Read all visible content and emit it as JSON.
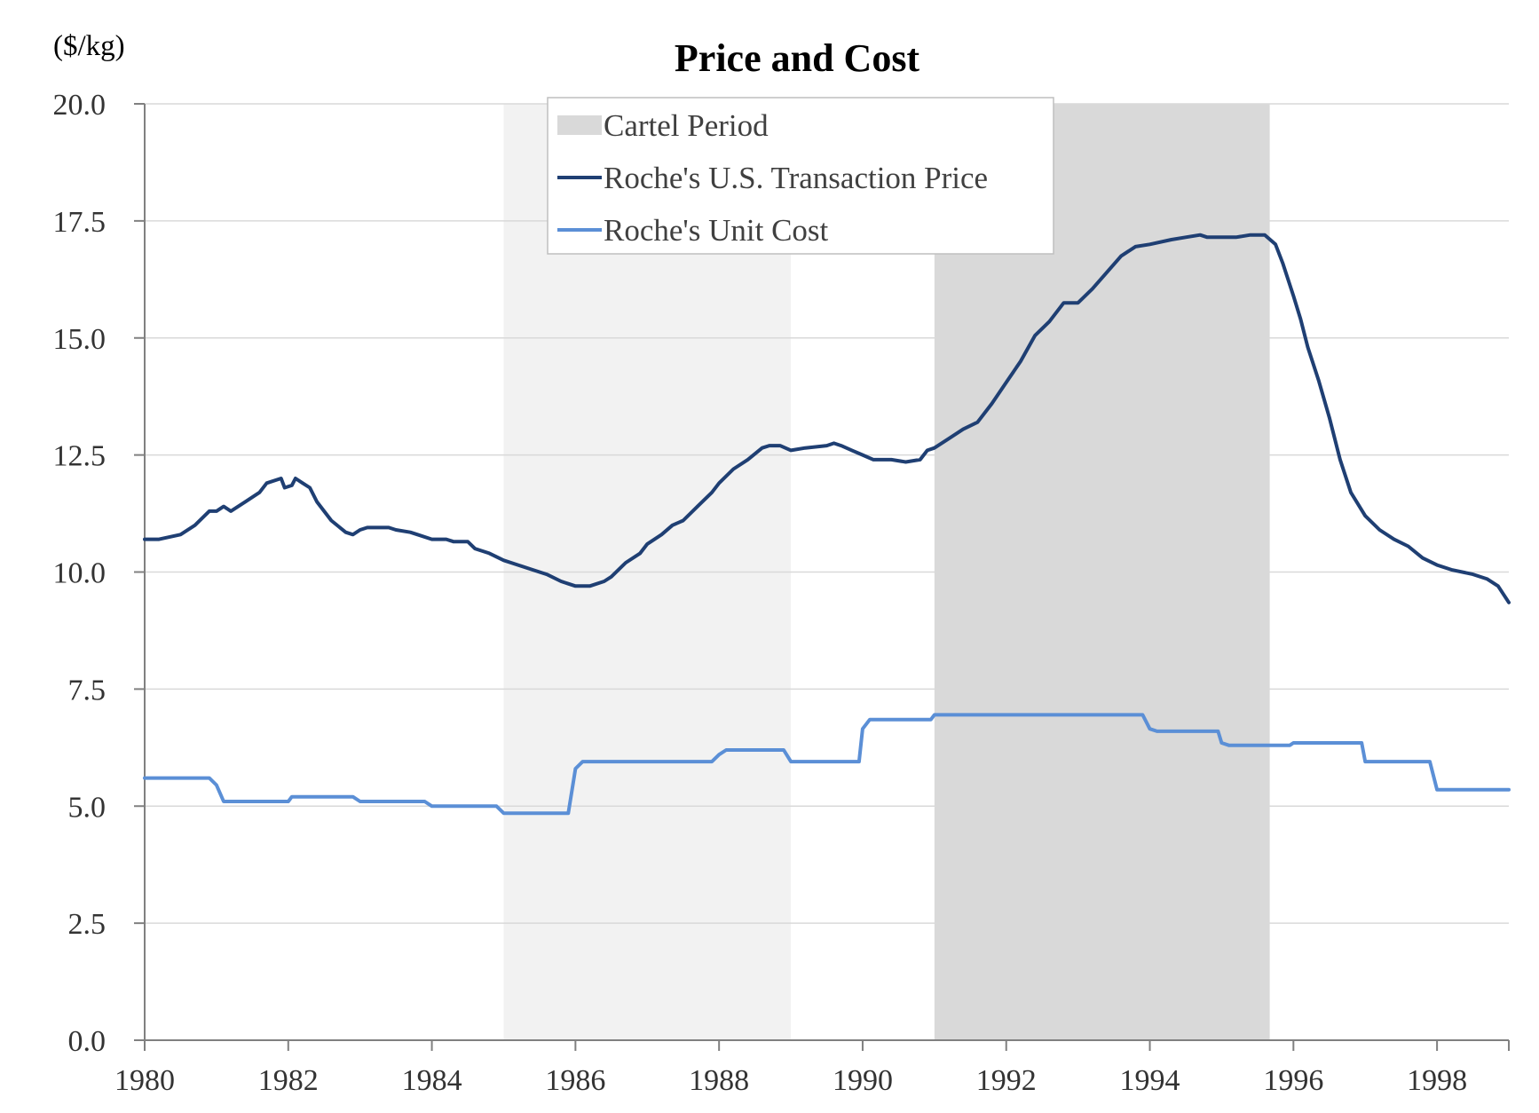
{
  "chart_data": {
    "type": "line",
    "title": "Price and Cost",
    "unit_label": "($/kg)",
    "xlim": [
      1980,
      1999
    ],
    "ylim": [
      0,
      20
    ],
    "x_ticks": [
      "1980",
      "1982",
      "1984",
      "1986",
      "1988",
      "1990",
      "1992",
      "1994",
      "1996",
      "1998"
    ],
    "y_ticks": [
      "0.0",
      "2.5",
      "5.0",
      "7.5",
      "10.0",
      "12.5",
      "15.0",
      "17.5",
      "20.0"
    ],
    "grid": "horizontal",
    "legend_placement": "top-center",
    "shaded_periods": [
      {
        "name": "",
        "start": 1985.0,
        "end": 1989.0,
        "color": "#f2f2f2"
      },
      {
        "name": "Cartel Period",
        "start": 1991.0,
        "end": 1995.67,
        "color": "#d9d9d9"
      }
    ],
    "legend": [
      {
        "label": "Cartel Period",
        "kind": "box",
        "color": "#d9d9d9"
      },
      {
        "label": "Roche's U.S. Transaction Price",
        "kind": "line",
        "color": "#1f3f73"
      },
      {
        "label": "Roche's Unit Cost",
        "kind": "line",
        "color": "#5b8fd6"
      }
    ],
    "series": [
      {
        "name": "Roche's U.S. Transaction Price",
        "color": "#1f3f73",
        "points": [
          [
            1980.0,
            10.7
          ],
          [
            1980.2,
            10.7
          ],
          [
            1980.5,
            10.8
          ],
          [
            1980.7,
            11.0
          ],
          [
            1980.9,
            11.3
          ],
          [
            1981.0,
            11.3
          ],
          [
            1981.1,
            11.4
          ],
          [
            1981.2,
            11.3
          ],
          [
            1981.4,
            11.5
          ],
          [
            1981.6,
            11.7
          ],
          [
            1981.7,
            11.9
          ],
          [
            1981.9,
            12.0
          ],
          [
            1981.95,
            11.8
          ],
          [
            1982.05,
            11.85
          ],
          [
            1982.1,
            12.0
          ],
          [
            1982.2,
            11.9
          ],
          [
            1982.3,
            11.8
          ],
          [
            1982.4,
            11.5
          ],
          [
            1982.6,
            11.1
          ],
          [
            1982.8,
            10.85
          ],
          [
            1982.9,
            10.8
          ],
          [
            1983.0,
            10.9
          ],
          [
            1983.1,
            10.95
          ],
          [
            1983.4,
            10.95
          ],
          [
            1983.5,
            10.9
          ],
          [
            1983.7,
            10.85
          ],
          [
            1983.8,
            10.8
          ],
          [
            1984.0,
            10.7
          ],
          [
            1984.2,
            10.7
          ],
          [
            1984.3,
            10.65
          ],
          [
            1984.5,
            10.65
          ],
          [
            1984.6,
            10.5
          ],
          [
            1984.8,
            10.4
          ],
          [
            1985.0,
            10.25
          ],
          [
            1985.2,
            10.15
          ],
          [
            1985.4,
            10.05
          ],
          [
            1985.6,
            9.95
          ],
          [
            1985.8,
            9.8
          ],
          [
            1985.9,
            9.75
          ],
          [
            1986.0,
            9.7
          ],
          [
            1986.2,
            9.7
          ],
          [
            1986.4,
            9.8
          ],
          [
            1986.5,
            9.9
          ],
          [
            1986.7,
            10.2
          ],
          [
            1986.9,
            10.4
          ],
          [
            1987.0,
            10.6
          ],
          [
            1987.2,
            10.8
          ],
          [
            1987.35,
            11.0
          ],
          [
            1987.5,
            11.1
          ],
          [
            1987.7,
            11.4
          ],
          [
            1987.9,
            11.7
          ],
          [
            1988.0,
            11.9
          ],
          [
            1988.2,
            12.2
          ],
          [
            1988.4,
            12.4
          ],
          [
            1988.6,
            12.65
          ],
          [
            1988.7,
            12.7
          ],
          [
            1988.85,
            12.7
          ],
          [
            1989.0,
            12.6
          ],
          [
            1989.2,
            12.65
          ],
          [
            1989.5,
            12.7
          ],
          [
            1989.6,
            12.75
          ],
          [
            1989.7,
            12.7
          ],
          [
            1989.85,
            12.6
          ],
          [
            1990.0,
            12.5
          ],
          [
            1990.15,
            12.4
          ],
          [
            1990.4,
            12.4
          ],
          [
            1990.6,
            12.35
          ],
          [
            1990.8,
            12.4
          ],
          [
            1990.9,
            12.6
          ],
          [
            1991.0,
            12.65
          ],
          [
            1991.2,
            12.85
          ],
          [
            1991.4,
            13.05
          ],
          [
            1991.6,
            13.2
          ],
          [
            1991.8,
            13.6
          ],
          [
            1992.0,
            14.05
          ],
          [
            1992.2,
            14.5
          ],
          [
            1992.4,
            15.05
          ],
          [
            1992.6,
            15.35
          ],
          [
            1992.8,
            15.75
          ],
          [
            1993.0,
            15.75
          ],
          [
            1993.2,
            16.05
          ],
          [
            1993.4,
            16.4
          ],
          [
            1993.6,
            16.75
          ],
          [
            1993.8,
            16.95
          ],
          [
            1994.0,
            17.0
          ],
          [
            1994.3,
            17.1
          ],
          [
            1994.5,
            17.15
          ],
          [
            1994.7,
            17.2
          ],
          [
            1994.8,
            17.15
          ],
          [
            1995.0,
            17.15
          ],
          [
            1995.2,
            17.15
          ],
          [
            1995.4,
            17.2
          ],
          [
            1995.6,
            17.2
          ],
          [
            1995.75,
            17.0
          ],
          [
            1995.85,
            16.6
          ],
          [
            1996.0,
            15.9
          ],
          [
            1996.1,
            15.4
          ],
          [
            1996.2,
            14.8
          ],
          [
            1996.35,
            14.1
          ],
          [
            1996.5,
            13.3
          ],
          [
            1996.65,
            12.4
          ],
          [
            1996.8,
            11.7
          ],
          [
            1997.0,
            11.2
          ],
          [
            1997.2,
            10.9
          ],
          [
            1997.4,
            10.7
          ],
          [
            1997.6,
            10.55
          ],
          [
            1997.8,
            10.3
          ],
          [
            1998.0,
            10.15
          ],
          [
            1998.2,
            10.05
          ],
          [
            1998.5,
            9.95
          ],
          [
            1998.7,
            9.85
          ],
          [
            1998.85,
            9.7
          ],
          [
            1999.0,
            9.35
          ]
        ]
      },
      {
        "name": "Roche's Unit Cost",
        "color": "#5b8fd6",
        "points": [
          [
            1980.0,
            5.6
          ],
          [
            1980.9,
            5.6
          ],
          [
            1981.0,
            5.45
          ],
          [
            1981.1,
            5.1
          ],
          [
            1981.2,
            5.1
          ],
          [
            1982.0,
            5.1
          ],
          [
            1982.05,
            5.2
          ],
          [
            1982.9,
            5.2
          ],
          [
            1983.0,
            5.1
          ],
          [
            1983.1,
            5.1
          ],
          [
            1983.9,
            5.1
          ],
          [
            1984.0,
            5.0
          ],
          [
            1984.9,
            5.0
          ],
          [
            1985.0,
            4.85
          ],
          [
            1985.9,
            4.85
          ],
          [
            1986.0,
            5.8
          ],
          [
            1986.1,
            5.95
          ],
          [
            1986.2,
            5.95
          ],
          [
            1987.9,
            5.95
          ],
          [
            1988.0,
            6.1
          ],
          [
            1988.1,
            6.2
          ],
          [
            1988.9,
            6.2
          ],
          [
            1989.0,
            5.95
          ],
          [
            1989.1,
            5.95
          ],
          [
            1989.95,
            5.95
          ],
          [
            1990.0,
            6.65
          ],
          [
            1990.1,
            6.85
          ],
          [
            1990.95,
            6.85
          ],
          [
            1991.0,
            6.95
          ],
          [
            1993.9,
            6.95
          ],
          [
            1994.0,
            6.65
          ],
          [
            1994.1,
            6.6
          ],
          [
            1994.95,
            6.6
          ],
          [
            1995.0,
            6.35
          ],
          [
            1995.1,
            6.3
          ],
          [
            1995.95,
            6.3
          ],
          [
            1996.0,
            6.35
          ],
          [
            1996.95,
            6.35
          ],
          [
            1997.0,
            5.95
          ],
          [
            1997.9,
            5.95
          ],
          [
            1998.0,
            5.35
          ],
          [
            1999.0,
            5.35
          ]
        ]
      }
    ]
  }
}
